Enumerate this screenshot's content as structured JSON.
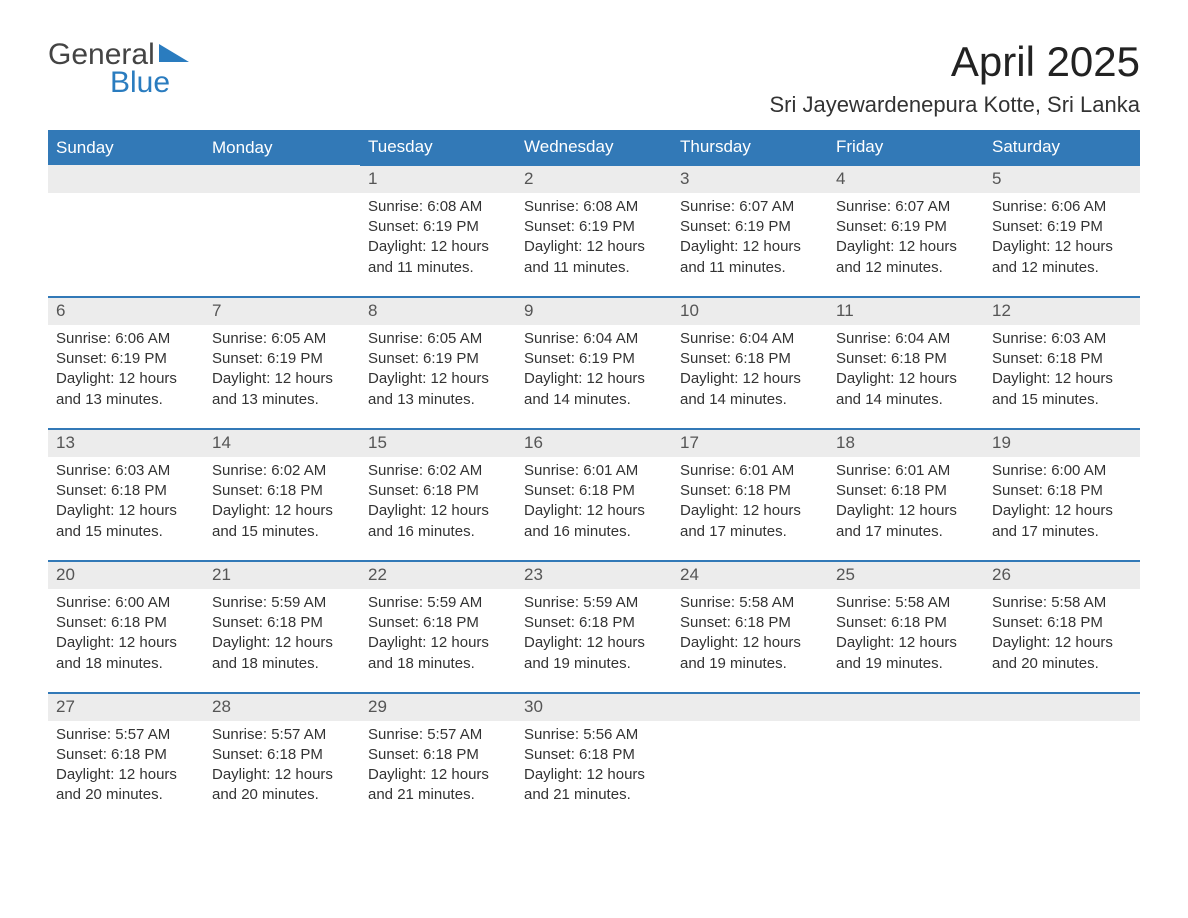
{
  "logo": {
    "word1": "General",
    "word2": "Blue"
  },
  "title": "April 2025",
  "location": "Sri Jayewardenepura Kotte, Sri Lanka",
  "colors": {
    "header_bg": "#3279b7",
    "daynum_bg": "#ececec",
    "border": "#3279b7",
    "logo_blue": "#2a7cbf"
  },
  "day_headers": [
    "Sunday",
    "Monday",
    "Tuesday",
    "Wednesday",
    "Thursday",
    "Friday",
    "Saturday"
  ],
  "weeks": [
    [
      null,
      null,
      {
        "n": "1",
        "sr": "Sunrise: 6:08 AM",
        "ss": "Sunset: 6:19 PM",
        "d1": "Daylight: 12 hours",
        "d2": "and 11 minutes."
      },
      {
        "n": "2",
        "sr": "Sunrise: 6:08 AM",
        "ss": "Sunset: 6:19 PM",
        "d1": "Daylight: 12 hours",
        "d2": "and 11 minutes."
      },
      {
        "n": "3",
        "sr": "Sunrise: 6:07 AM",
        "ss": "Sunset: 6:19 PM",
        "d1": "Daylight: 12 hours",
        "d2": "and 11 minutes."
      },
      {
        "n": "4",
        "sr": "Sunrise: 6:07 AM",
        "ss": "Sunset: 6:19 PM",
        "d1": "Daylight: 12 hours",
        "d2": "and 12 minutes."
      },
      {
        "n": "5",
        "sr": "Sunrise: 6:06 AM",
        "ss": "Sunset: 6:19 PM",
        "d1": "Daylight: 12 hours",
        "d2": "and 12 minutes."
      }
    ],
    [
      {
        "n": "6",
        "sr": "Sunrise: 6:06 AM",
        "ss": "Sunset: 6:19 PM",
        "d1": "Daylight: 12 hours",
        "d2": "and 13 minutes."
      },
      {
        "n": "7",
        "sr": "Sunrise: 6:05 AM",
        "ss": "Sunset: 6:19 PM",
        "d1": "Daylight: 12 hours",
        "d2": "and 13 minutes."
      },
      {
        "n": "8",
        "sr": "Sunrise: 6:05 AM",
        "ss": "Sunset: 6:19 PM",
        "d1": "Daylight: 12 hours",
        "d2": "and 13 minutes."
      },
      {
        "n": "9",
        "sr": "Sunrise: 6:04 AM",
        "ss": "Sunset: 6:19 PM",
        "d1": "Daylight: 12 hours",
        "d2": "and 14 minutes."
      },
      {
        "n": "10",
        "sr": "Sunrise: 6:04 AM",
        "ss": "Sunset: 6:18 PM",
        "d1": "Daylight: 12 hours",
        "d2": "and 14 minutes."
      },
      {
        "n": "11",
        "sr": "Sunrise: 6:04 AM",
        "ss": "Sunset: 6:18 PM",
        "d1": "Daylight: 12 hours",
        "d2": "and 14 minutes."
      },
      {
        "n": "12",
        "sr": "Sunrise: 6:03 AM",
        "ss": "Sunset: 6:18 PM",
        "d1": "Daylight: 12 hours",
        "d2": "and 15 minutes."
      }
    ],
    [
      {
        "n": "13",
        "sr": "Sunrise: 6:03 AM",
        "ss": "Sunset: 6:18 PM",
        "d1": "Daylight: 12 hours",
        "d2": "and 15 minutes."
      },
      {
        "n": "14",
        "sr": "Sunrise: 6:02 AM",
        "ss": "Sunset: 6:18 PM",
        "d1": "Daylight: 12 hours",
        "d2": "and 15 minutes."
      },
      {
        "n": "15",
        "sr": "Sunrise: 6:02 AM",
        "ss": "Sunset: 6:18 PM",
        "d1": "Daylight: 12 hours",
        "d2": "and 16 minutes."
      },
      {
        "n": "16",
        "sr": "Sunrise: 6:01 AM",
        "ss": "Sunset: 6:18 PM",
        "d1": "Daylight: 12 hours",
        "d2": "and 16 minutes."
      },
      {
        "n": "17",
        "sr": "Sunrise: 6:01 AM",
        "ss": "Sunset: 6:18 PM",
        "d1": "Daylight: 12 hours",
        "d2": "and 17 minutes."
      },
      {
        "n": "18",
        "sr": "Sunrise: 6:01 AM",
        "ss": "Sunset: 6:18 PM",
        "d1": "Daylight: 12 hours",
        "d2": "and 17 minutes."
      },
      {
        "n": "19",
        "sr": "Sunrise: 6:00 AM",
        "ss": "Sunset: 6:18 PM",
        "d1": "Daylight: 12 hours",
        "d2": "and 17 minutes."
      }
    ],
    [
      {
        "n": "20",
        "sr": "Sunrise: 6:00 AM",
        "ss": "Sunset: 6:18 PM",
        "d1": "Daylight: 12 hours",
        "d2": "and 18 minutes."
      },
      {
        "n": "21",
        "sr": "Sunrise: 5:59 AM",
        "ss": "Sunset: 6:18 PM",
        "d1": "Daylight: 12 hours",
        "d2": "and 18 minutes."
      },
      {
        "n": "22",
        "sr": "Sunrise: 5:59 AM",
        "ss": "Sunset: 6:18 PM",
        "d1": "Daylight: 12 hours",
        "d2": "and 18 minutes."
      },
      {
        "n": "23",
        "sr": "Sunrise: 5:59 AM",
        "ss": "Sunset: 6:18 PM",
        "d1": "Daylight: 12 hours",
        "d2": "and 19 minutes."
      },
      {
        "n": "24",
        "sr": "Sunrise: 5:58 AM",
        "ss": "Sunset: 6:18 PM",
        "d1": "Daylight: 12 hours",
        "d2": "and 19 minutes."
      },
      {
        "n": "25",
        "sr": "Sunrise: 5:58 AM",
        "ss": "Sunset: 6:18 PM",
        "d1": "Daylight: 12 hours",
        "d2": "and 19 minutes."
      },
      {
        "n": "26",
        "sr": "Sunrise: 5:58 AM",
        "ss": "Sunset: 6:18 PM",
        "d1": "Daylight: 12 hours",
        "d2": "and 20 minutes."
      }
    ],
    [
      {
        "n": "27",
        "sr": "Sunrise: 5:57 AM",
        "ss": "Sunset: 6:18 PM",
        "d1": "Daylight: 12 hours",
        "d2": "and 20 minutes."
      },
      {
        "n": "28",
        "sr": "Sunrise: 5:57 AM",
        "ss": "Sunset: 6:18 PM",
        "d1": "Daylight: 12 hours",
        "d2": "and 20 minutes."
      },
      {
        "n": "29",
        "sr": "Sunrise: 5:57 AM",
        "ss": "Sunset: 6:18 PM",
        "d1": "Daylight: 12 hours",
        "d2": "and 21 minutes."
      },
      {
        "n": "30",
        "sr": "Sunrise: 5:56 AM",
        "ss": "Sunset: 6:18 PM",
        "d1": "Daylight: 12 hours",
        "d2": "and 21 minutes."
      },
      null,
      null,
      null
    ]
  ]
}
